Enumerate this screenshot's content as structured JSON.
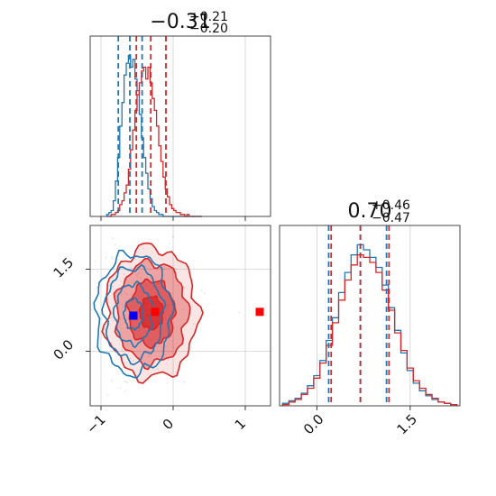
{
  "chart_data": {
    "type": "corner",
    "colors": {
      "blue": "#1f77b4",
      "red": "#d62728",
      "marker_blue": "#0000ff",
      "marker_red": "#ff0000"
    },
    "grid": true,
    "panels": {
      "hist_x": {
        "type": "histogram",
        "title": {
          "median": "−0.31",
          "plus": "+0.21",
          "minus": "−0.20"
        },
        "xlim": [
          -1.15,
          1.35
        ],
        "bins": [
          -0.92,
          -0.89,
          -0.86,
          -0.83,
          -0.8,
          -0.77,
          -0.74,
          -0.71,
          -0.68,
          -0.65,
          -0.62,
          -0.59,
          -0.56,
          -0.53,
          -0.5,
          -0.47,
          -0.44,
          -0.41,
          -0.38,
          -0.35,
          -0.32,
          -0.29,
          -0.26,
          -0.23,
          -0.2,
          -0.17,
          -0.14,
          -0.11,
          -0.08,
          -0.05,
          -0.02,
          0.01,
          0.04,
          0.07,
          0.1,
          0.13,
          0.16,
          0.19,
          0.22,
          0.25,
          0.28,
          0.31,
          0.34,
          0.37,
          0.4
        ],
        "series": [
          {
            "name": "",
            "color": "#1f77b4",
            "counts": [
              1,
              2,
              3,
              8,
              18,
              30,
              46,
              58,
              72,
              78,
              82,
              76,
              80,
              70,
              64,
              52,
              40,
              30,
              22,
              14,
              9,
              5,
              3,
              2,
              1,
              1,
              0,
              0,
              0,
              0,
              0,
              0,
              0,
              0,
              0,
              0,
              0,
              0,
              0,
              0,
              0,
              0,
              0,
              0
            ],
            "quantiles": [
              -0.76,
              -0.6,
              -0.43
            ]
          },
          {
            "name": "",
            "color": "#d62728",
            "counts": [
              0,
              0,
              1,
              1,
              2,
              3,
              6,
              8,
              12,
              16,
              24,
              34,
              44,
              54,
              62,
              68,
              74,
              76,
              70,
              76,
              68,
              60,
              54,
              46,
              36,
              28,
              20,
              14,
              10,
              6,
              4,
              3,
              2,
              2,
              1,
              1,
              0,
              1,
              0,
              0,
              0,
              0,
              0,
              0
            ],
            "quantiles": [
              -0.51,
              -0.31,
              -0.1
            ]
          }
        ]
      },
      "hist_y": {
        "type": "histogram",
        "title": {
          "median": "0.70",
          "plus": "+0.46",
          "minus": "−0.47"
        },
        "xlim": [
          -0.6,
          2.3
        ],
        "xticks": [
          0.0,
          1.5
        ],
        "xticklabels": [
          "0.0",
          "1.5"
        ],
        "bins": [
          -0.55,
          -0.45,
          -0.35,
          -0.25,
          -0.15,
          -0.05,
          0.05,
          0.15,
          0.25,
          0.35,
          0.45,
          0.55,
          0.65,
          0.75,
          0.85,
          0.95,
          1.05,
          1.15,
          1.25,
          1.35,
          1.45,
          1.55,
          1.65,
          1.75,
          1.85,
          1.95,
          2.05,
          2.15,
          2.25
        ],
        "series": [
          {
            "name": "",
            "color": "#1f77b4",
            "counts": [
              2,
              4,
              6,
              10,
              16,
              24,
              36,
              52,
              70,
              90,
              106,
              120,
              128,
              124,
              118,
              110,
              96,
              78,
              60,
              42,
              28,
              18,
              12,
              8,
              5,
              3,
              2,
              1
            ],
            "quantiles": [
              0.19,
              0.7,
              1.12
            ]
          },
          {
            "name": "",
            "color": "#d62728",
            "counts": [
              1,
              3,
              5,
              9,
              14,
              22,
              34,
              48,
              66,
              84,
              100,
              112,
              120,
              118,
              114,
              106,
              92,
              76,
              58,
              44,
              30,
              20,
              14,
              9,
              6,
              3,
              2,
              1
            ],
            "quantiles": [
              0.23,
              0.7,
              1.16
            ]
          }
        ]
      },
      "joint": {
        "type": "contour",
        "xlim": [
          -1.15,
          1.35
        ],
        "ylim": [
          -1.0,
          2.3
        ],
        "xticks": [
          -1,
          0,
          1
        ],
        "xticklabels": [
          "−1",
          "0",
          "1"
        ],
        "yticks": [
          0.0,
          1.5
        ],
        "yticklabels": [
          "0.0",
          "1.5"
        ],
        "series": [
          {
            "name": "",
            "color": "#1f77b4",
            "filled": false,
            "center": [
              -0.55,
              0.68
            ],
            "sigma": [
              0.26,
              0.55
            ]
          },
          {
            "name": "",
            "color": "#d62728",
            "filled": true,
            "center": [
              -0.3,
              0.7
            ],
            "sigma": [
              0.32,
              0.6
            ]
          }
        ],
        "markers": [
          {
            "x": -0.55,
            "y": 0.65,
            "color": "#0000ff"
          },
          {
            "x": -0.25,
            "y": 0.72,
            "color": "#ff0000"
          },
          {
            "x": 1.2,
            "y": 0.72,
            "color": "#ff0000"
          }
        ]
      }
    }
  }
}
